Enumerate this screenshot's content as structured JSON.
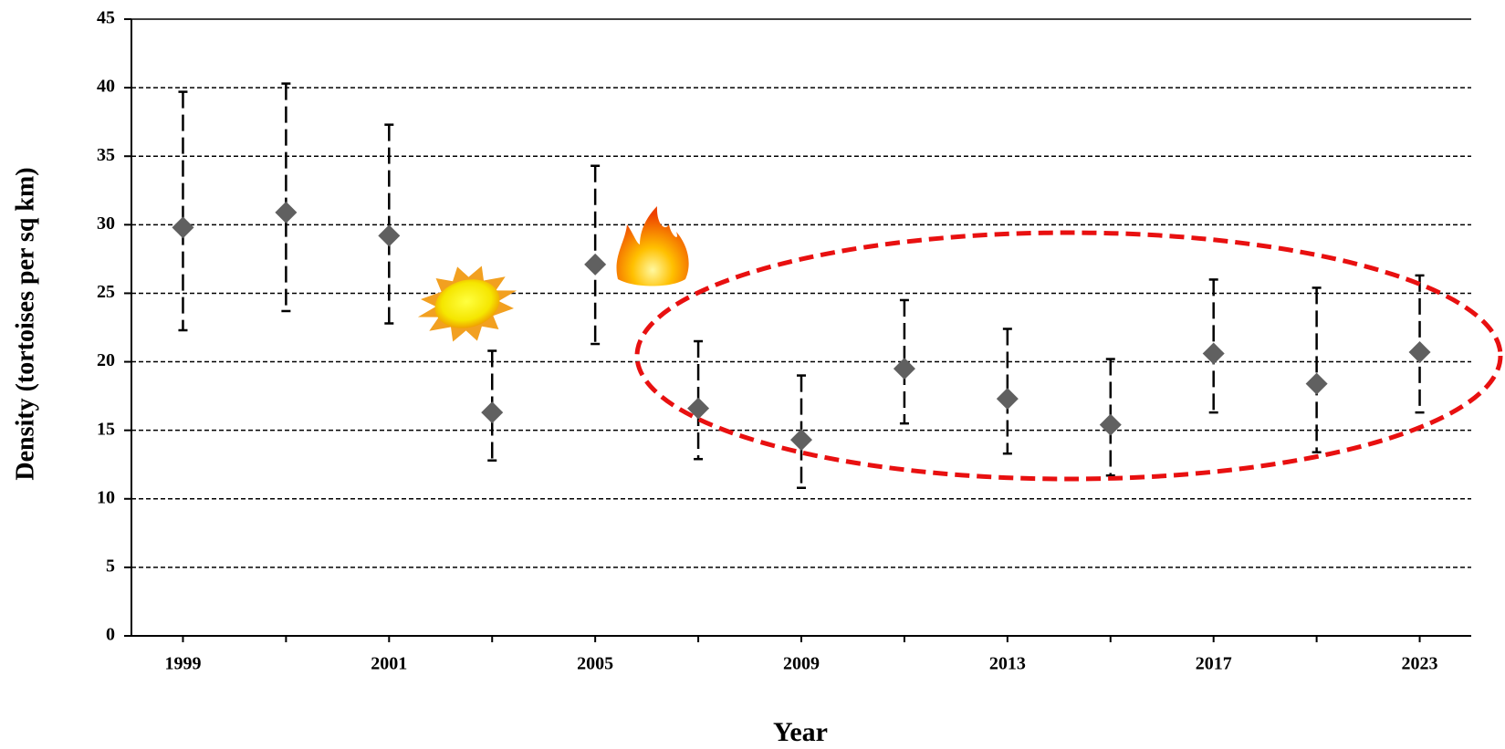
{
  "chart_data": {
    "type": "errorbar",
    "x_label": "Year",
    "y_label": "Density (tortoises per sq km)",
    "categories": [
      "1999",
      null,
      "2001",
      null,
      "2005",
      null,
      "2009",
      null,
      "2013",
      null,
      "2017",
      null,
      "2023"
    ],
    "values": [
      29.8,
      30.9,
      29.2,
      16.3,
      27.1,
      16.6,
      14.3,
      19.5,
      17.3,
      15.4,
      20.6,
      18.4,
      20.7
    ],
    "upper": [
      39.7,
      40.3,
      37.3,
      20.8,
      34.3,
      21.5,
      19.0,
      24.5,
      22.4,
      20.2,
      26.0,
      25.4,
      26.3
    ],
    "lower": [
      22.3,
      23.7,
      22.8,
      12.8,
      21.3,
      12.9,
      10.8,
      15.5,
      13.3,
      11.7,
      16.3,
      13.4,
      16.3
    ],
    "color": "#606060",
    "ylim": [
      0,
      45
    ],
    "yticks": [
      0,
      5,
      10,
      15,
      20,
      25,
      30,
      35,
      40,
      45
    ],
    "grid": true
  }
}
